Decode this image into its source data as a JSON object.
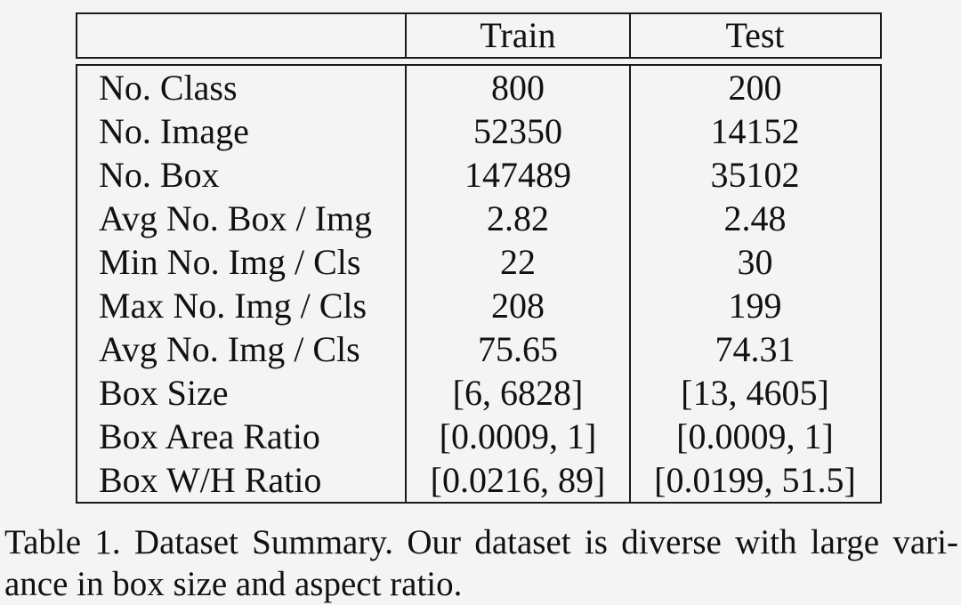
{
  "table": {
    "header": {
      "col0": "",
      "col1": "Train",
      "col2": "Test"
    },
    "rows": [
      {
        "label": "No. Class",
        "train": "800",
        "test": "200"
      },
      {
        "label": "No. Image",
        "train": "52350",
        "test": "14152"
      },
      {
        "label": "No. Box",
        "train": "147489",
        "test": "35102"
      },
      {
        "label": "Avg No. Box / Img",
        "train": "2.82",
        "test": "2.48"
      },
      {
        "label": "Min No. Img / Cls",
        "train": "22",
        "test": "30"
      },
      {
        "label": "Max No. Img / Cls",
        "train": "208",
        "test": "199"
      },
      {
        "label": "Avg No. Img / Cls",
        "train": "75.65",
        "test": "74.31"
      },
      {
        "label": "Box Size",
        "train": "[6, 6828]",
        "test": "[13, 4605]"
      },
      {
        "label": "Box Area Ratio",
        "train": "[0.0009, 1]",
        "test": "[0.0009, 1]"
      },
      {
        "label": "Box W/H Ratio",
        "train": "[0.0216, 89]",
        "test": "[0.0199, 51.5]"
      }
    ]
  },
  "caption": {
    "line1": "Table 1. Dataset Summary. Our dataset is diverse with large vari-",
    "line2": "ance in box size and aspect ratio."
  },
  "colors": {
    "text": "#111111",
    "border": "#1a1a1a",
    "background": "#f4f4f4"
  }
}
